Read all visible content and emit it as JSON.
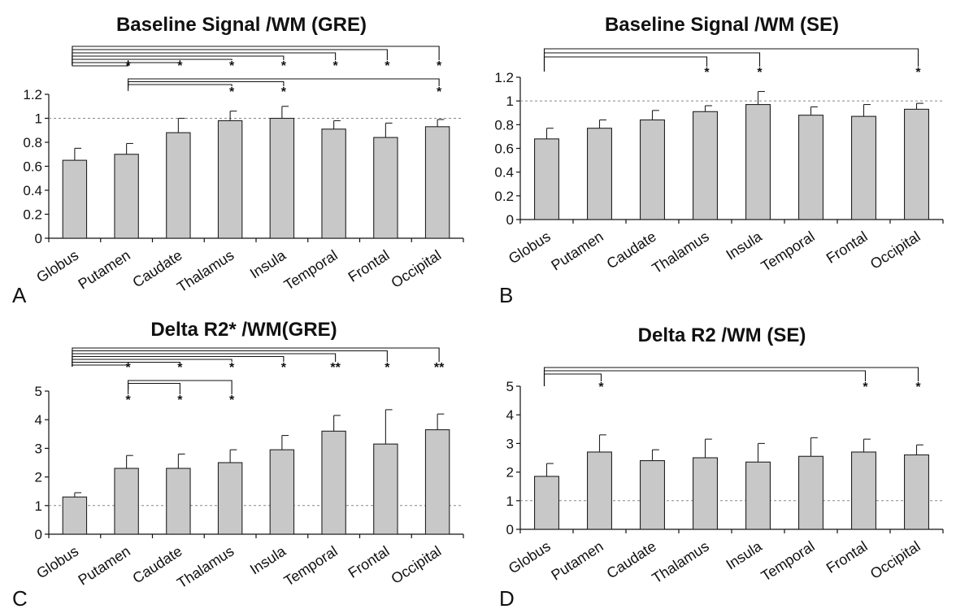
{
  "chart_data": [
    {
      "panel": "A",
      "type": "bar",
      "title": "Baseline Signal /WM (GRE)",
      "categories": [
        "Globus",
        "Putamen",
        "Caudate",
        "Thalamus",
        "Insula",
        "Temporal",
        "Frontal",
        "Occipital"
      ],
      "values": [
        0.65,
        0.7,
        0.88,
        0.98,
        1.0,
        0.91,
        0.84,
        0.93
      ],
      "errors": [
        0.1,
        0.09,
        0.12,
        0.08,
        0.1,
        0.07,
        0.12,
        0.06
      ],
      "ylim": [
        0,
        1.2
      ],
      "yticks": [
        "0",
        "0.2",
        "0.4",
        "0.6",
        "0.8",
        "1",
        "1.2"
      ],
      "reference_line": 1,
      "bar_color": "#c8c8c8",
      "comparisons_from": [
        "Globus",
        "Putamen"
      ],
      "stars": [
        {
          "category": "Putamen",
          "row": 1,
          "text": "*"
        },
        {
          "category": "Caudate",
          "row": 1,
          "text": "*"
        },
        {
          "category": "Thalamus",
          "row": 1,
          "text": "*"
        },
        {
          "category": "Insula",
          "row": 1,
          "text": "*"
        },
        {
          "category": "Temporal",
          "row": 1,
          "text": "*"
        },
        {
          "category": "Frontal",
          "row": 1,
          "text": "*"
        },
        {
          "category": "Occipital",
          "row": 1,
          "text": "*"
        },
        {
          "category": "Thalamus",
          "row": 2,
          "text": "*"
        },
        {
          "category": "Insula",
          "row": 2,
          "text": "*"
        },
        {
          "category": "Occipital",
          "row": 2,
          "text": "*"
        }
      ]
    },
    {
      "panel": "B",
      "type": "bar",
      "title": "Baseline Signal /WM (SE)",
      "categories": [
        "Globus",
        "Putamen",
        "Caudate",
        "Thalamus",
        "Insula",
        "Temporal",
        "Frontal",
        "Occipital"
      ],
      "values": [
        0.68,
        0.77,
        0.84,
        0.91,
        0.97,
        0.88,
        0.87,
        0.93
      ],
      "errors": [
        0.09,
        0.07,
        0.08,
        0.05,
        0.11,
        0.07,
        0.1,
        0.05
      ],
      "ylim": [
        0,
        1.2
      ],
      "yticks": [
        "0",
        "0.2",
        "0.4",
        "0.6",
        "0.8",
        "1",
        "1.2"
      ],
      "reference_line": 1,
      "bar_color": "#c8c8c8",
      "comparisons_from": [
        "Globus"
      ],
      "stars": [
        {
          "category": "Thalamus",
          "row": 1,
          "text": "*"
        },
        {
          "category": "Insula",
          "row": 1,
          "text": "*"
        },
        {
          "category": "Occipital",
          "row": 1,
          "text": "*"
        }
      ]
    },
    {
      "panel": "C",
      "type": "bar",
      "title": "Delta R2* /WM(GRE)",
      "categories": [
        "Globus",
        "Putamen",
        "Caudate",
        "Thalamus",
        "Insula",
        "Temporal",
        "Frontal",
        "Occipital"
      ],
      "values": [
        1.3,
        2.3,
        2.3,
        2.5,
        2.95,
        3.6,
        3.15,
        3.65
      ],
      "errors": [
        0.15,
        0.45,
        0.5,
        0.45,
        0.5,
        0.55,
        1.2,
        0.55
      ],
      "ylim": [
        0,
        5
      ],
      "yticks": [
        "0",
        "1",
        "2",
        "3",
        "4",
        "5"
      ],
      "reference_line": 1,
      "bar_color": "#c8c8c8",
      "comparisons_from": [
        "Globus",
        "Putamen"
      ],
      "stars": [
        {
          "category": "Putamen",
          "row": 1,
          "text": "*"
        },
        {
          "category": "Caudate",
          "row": 1,
          "text": "*"
        },
        {
          "category": "Thalamus",
          "row": 1,
          "text": "*"
        },
        {
          "category": "Insula",
          "row": 1,
          "text": "*"
        },
        {
          "category": "Temporal",
          "row": 1,
          "text": "**"
        },
        {
          "category": "Frontal",
          "row": 1,
          "text": "*"
        },
        {
          "category": "Occipital",
          "row": 1,
          "text": "**"
        },
        {
          "category": "Putamen",
          "row": 2,
          "text": "*"
        },
        {
          "category": "Caudate",
          "row": 2,
          "text": "*"
        },
        {
          "category": "Thalamus",
          "row": 2,
          "text": "*"
        }
      ]
    },
    {
      "panel": "D",
      "type": "bar",
      "title": "Delta R2  /WM (SE)",
      "categories": [
        "Globus",
        "Putamen",
        "Caudate",
        "Thalamus",
        "Insula",
        "Temporal",
        "Frontal",
        "Occipital"
      ],
      "values": [
        1.85,
        2.7,
        2.4,
        2.5,
        2.35,
        2.55,
        2.7,
        2.6
      ],
      "errors": [
        0.45,
        0.6,
        0.38,
        0.65,
        0.65,
        0.65,
        0.45,
        0.35
      ],
      "ylim": [
        0,
        5
      ],
      "yticks": [
        "0",
        "1",
        "2",
        "3",
        "4",
        "5"
      ],
      "reference_line": 1,
      "bar_color": "#c8c8c8",
      "comparisons_from": [
        "Globus"
      ],
      "stars": [
        {
          "category": "Putamen",
          "row": 1,
          "text": "*"
        },
        {
          "category": "Frontal",
          "row": 1,
          "text": "*"
        },
        {
          "category": "Occipital",
          "row": 1,
          "text": "*"
        }
      ]
    }
  ]
}
